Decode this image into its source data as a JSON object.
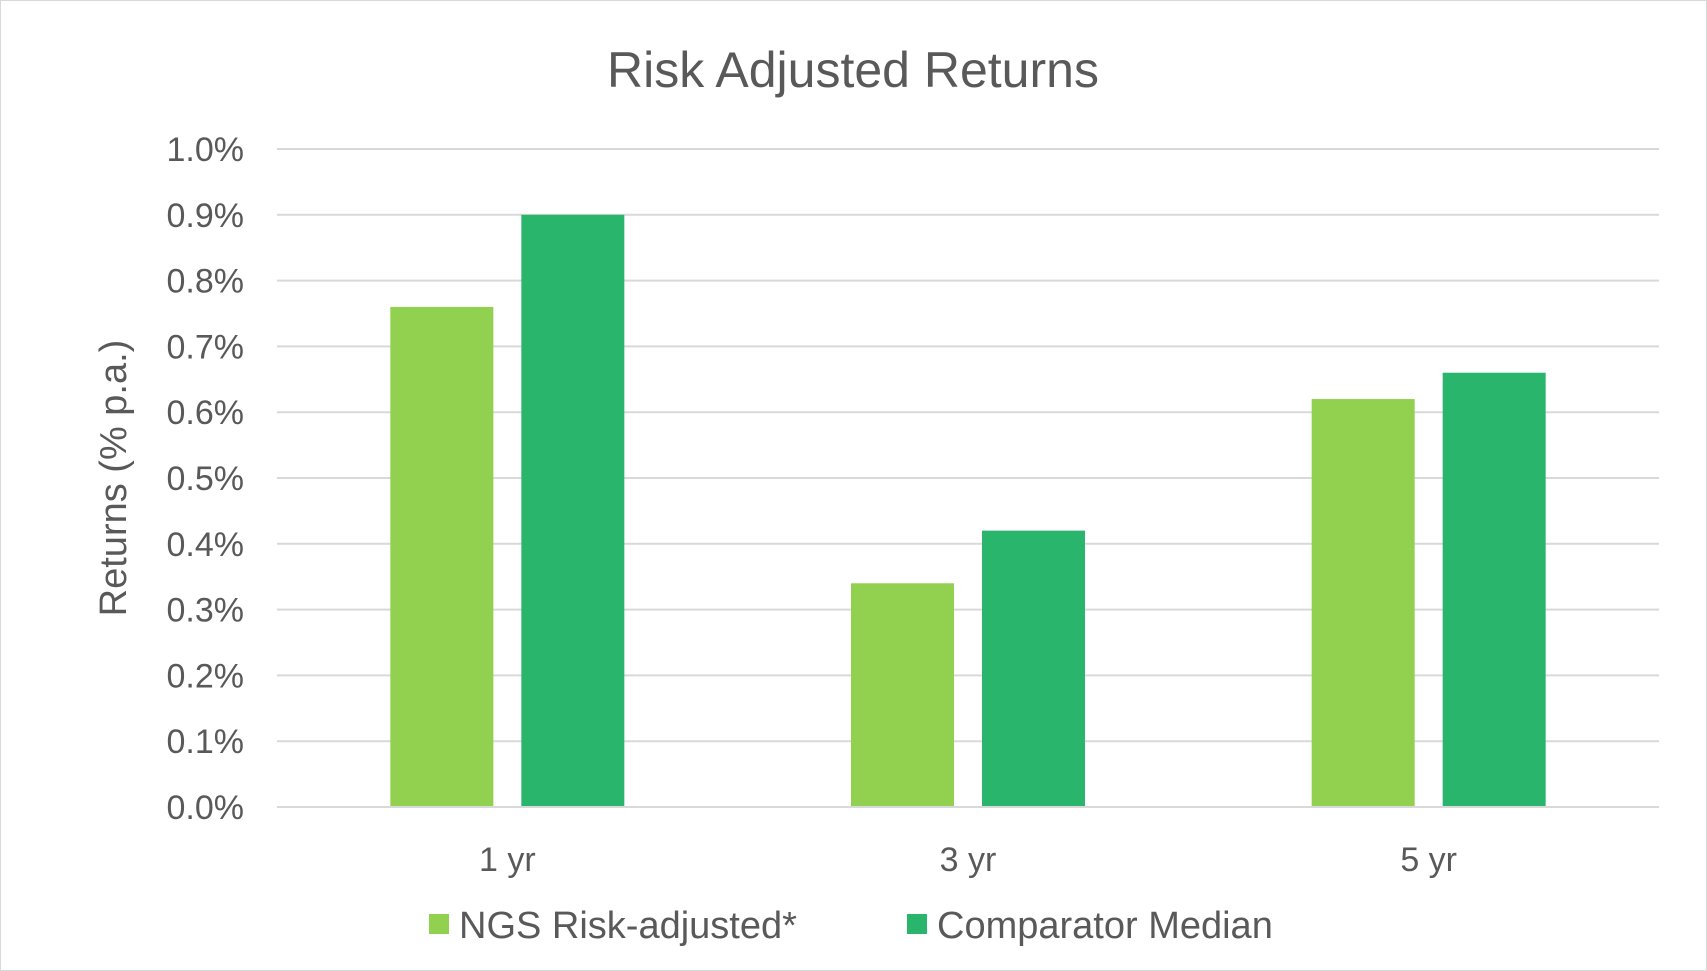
{
  "chart_data": {
    "type": "bar",
    "title": "Risk Adjusted Returns",
    "ylabel": "Returns (% p.a.)",
    "xlabel": "",
    "categories": [
      "1 yr",
      "3 yr",
      "5 yr"
    ],
    "series": [
      {
        "name": "NGS Risk-adjusted*",
        "values": [
          0.76,
          0.34,
          0.62
        ],
        "color": "#92d050"
      },
      {
        "name": "Comparator Median",
        "values": [
          0.9,
          0.42,
          0.66
        ],
        "color": "#2ab56c"
      }
    ],
    "ylim": [
      0,
      1.0
    ],
    "yticks": [
      "0.0%",
      "0.1%",
      "0.2%",
      "0.3%",
      "0.4%",
      "0.5%",
      "0.6%",
      "0.7%",
      "0.8%",
      "0.9%",
      "1.0%"
    ],
    "grid": true,
    "legend_position": "bottom"
  }
}
